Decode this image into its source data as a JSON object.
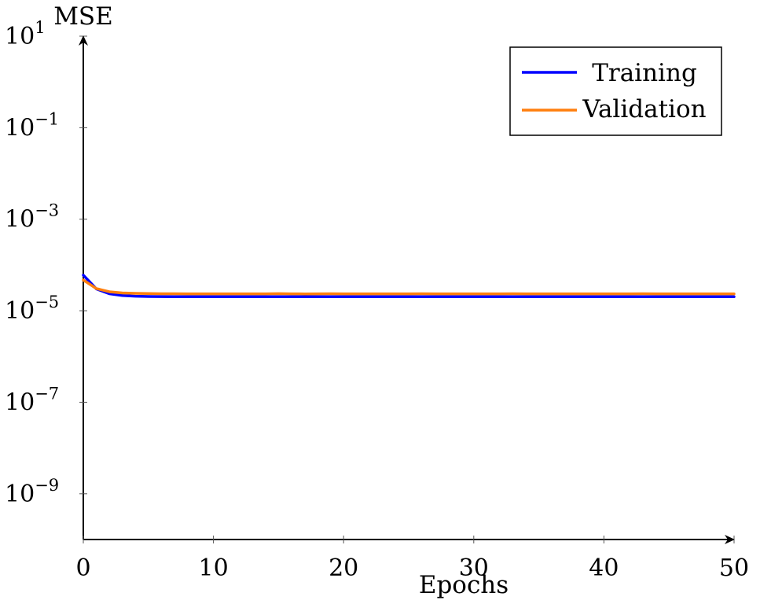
{
  "chart_data": {
    "type": "line",
    "xlabel": "Epochs",
    "ylabel": "MSE",
    "xlim": [
      0,
      50
    ],
    "ylim": [
      1e-10,
      10
    ],
    "y_scale": "log",
    "grid": false,
    "legend_position": "top-right",
    "x_ticks": [
      0,
      10,
      20,
      30,
      40,
      50
    ],
    "y_ticks": [
      {
        "base": "10",
        "exp": "1",
        "value": 10
      },
      {
        "base": "10",
        "exp": "−1",
        "value": 0.1
      },
      {
        "base": "10",
        "exp": "−3",
        "value": 0.001
      },
      {
        "base": "10",
        "exp": "−5",
        "value": 1e-05
      },
      {
        "base": "10",
        "exp": "−7",
        "value": 1e-07
      },
      {
        "base": "10",
        "exp": "−9",
        "value": 1e-09
      }
    ],
    "x": [
      0,
      1,
      2,
      3,
      4,
      5,
      6,
      7,
      8,
      9,
      10,
      11,
      12,
      13,
      14,
      15,
      16,
      17,
      18,
      19,
      20,
      21,
      22,
      23,
      24,
      25,
      26,
      27,
      28,
      29,
      30,
      31,
      32,
      33,
      34,
      35,
      36,
      37,
      38,
      39,
      40,
      41,
      42,
      43,
      44,
      45,
      46,
      47,
      48,
      49,
      50
    ],
    "series": [
      {
        "name": "Training",
        "color": "#0000ff",
        "values": [
          6e-05,
          3e-05,
          2.35e-05,
          2.15e-05,
          2.08e-05,
          2.05e-05,
          2.04e-05,
          2.03e-05,
          2.03e-05,
          2.03e-05,
          2.03e-05,
          2.03e-05,
          2.03e-05,
          2.03e-05,
          2.03e-05,
          2.03e-05,
          2.03e-05,
          2.03e-05,
          2.03e-05,
          2.03e-05,
          2.03e-05,
          2.03e-05,
          2.03e-05,
          2.03e-05,
          2.03e-05,
          2.03e-05,
          2.03e-05,
          2.03e-05,
          2.03e-05,
          2.03e-05,
          2.03e-05,
          2.03e-05,
          2.03e-05,
          2.03e-05,
          2.03e-05,
          2.03e-05,
          2.03e-05,
          2.03e-05,
          2.03e-05,
          2.03e-05,
          2.03e-05,
          2.03e-05,
          2.03e-05,
          2.03e-05,
          2.03e-05,
          2.03e-05,
          2.03e-05,
          2.03e-05,
          2.03e-05,
          2.03e-05,
          2.03e-05
        ]
      },
      {
        "name": "Validation",
        "color": "#ff7f0e",
        "values": [
          4.7e-05,
          3.05e-05,
          2.6e-05,
          2.45e-05,
          2.4e-05,
          2.37e-05,
          2.35e-05,
          2.35e-05,
          2.34e-05,
          2.34e-05,
          2.34e-05,
          2.34e-05,
          2.34e-05,
          2.34e-05,
          2.34e-05,
          2.36e-05,
          2.34e-05,
          2.33e-05,
          2.34e-05,
          2.35e-05,
          2.34e-05,
          2.34e-05,
          2.34e-05,
          2.34e-05,
          2.34e-05,
          2.34e-05,
          2.35e-05,
          2.34e-05,
          2.34e-05,
          2.34e-05,
          2.34e-05,
          2.34e-05,
          2.34e-05,
          2.35e-05,
          2.34e-05,
          2.34e-05,
          2.34e-05,
          2.34e-05,
          2.34e-05,
          2.34e-05,
          2.34e-05,
          2.34e-05,
          2.34e-05,
          2.35e-05,
          2.34e-05,
          2.34e-05,
          2.34e-05,
          2.34e-05,
          2.34e-05,
          2.34e-05,
          2.34e-05
        ]
      }
    ]
  }
}
